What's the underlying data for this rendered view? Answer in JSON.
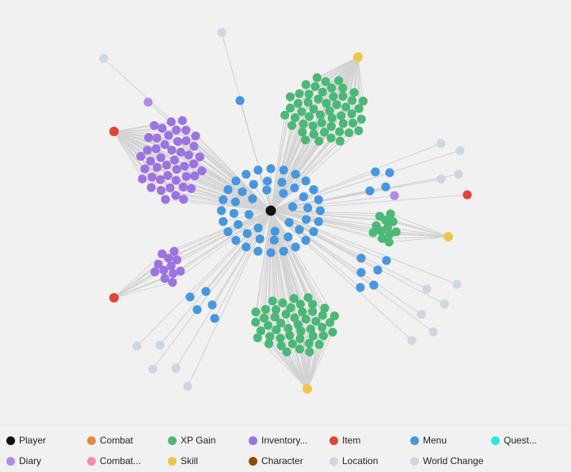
{
  "graph": {
    "groups": [
      {
        "type": "player"
      },
      {
        "type": "xp-gain"
      },
      {
        "type": "inventory"
      },
      {
        "type": "item"
      },
      {
        "type": "menu"
      },
      {
        "type": "diary"
      },
      {
        "type": "skill"
      },
      {
        "type": "location"
      }
    ]
  },
  "legend": {
    "items": [
      {
        "label": "Player",
        "color": "#111111",
        "icon": "player-dot"
      },
      {
        "label": "Combat",
        "color": "#e8893a",
        "icon": "combat-dot"
      },
      {
        "label": "XP Gain",
        "color": "#4cb877",
        "icon": "xp-gain-dot"
      },
      {
        "label": "Inventory...",
        "color": "#9c73e0",
        "icon": "inventory-dot"
      },
      {
        "label": "Item",
        "color": "#e0443a",
        "icon": "item-dot"
      },
      {
        "label": "Menu",
        "color": "#4797e0",
        "icon": "menu-dot"
      },
      {
        "label": "Quest...",
        "color": "#2ee6d6",
        "icon": "quest-dot"
      },
      {
        "label": "Diary",
        "color": "#b08be8",
        "icon": "diary-dot"
      },
      {
        "label": "Combat...",
        "color": "#f08cb0",
        "icon": "combat-secondary-dot"
      },
      {
        "label": "Skill",
        "color": "#edc54a",
        "icon": "skill-dot"
      },
      {
        "label": "Character",
        "color": "#8a4a0e",
        "icon": "character-dot"
      },
      {
        "label": "Location",
        "color": "#cfd6e0",
        "icon": "location-dot"
      },
      {
        "label": "World Change",
        "color": "#cfd6e0",
        "icon": "world-change-dot"
      }
    ]
  }
}
